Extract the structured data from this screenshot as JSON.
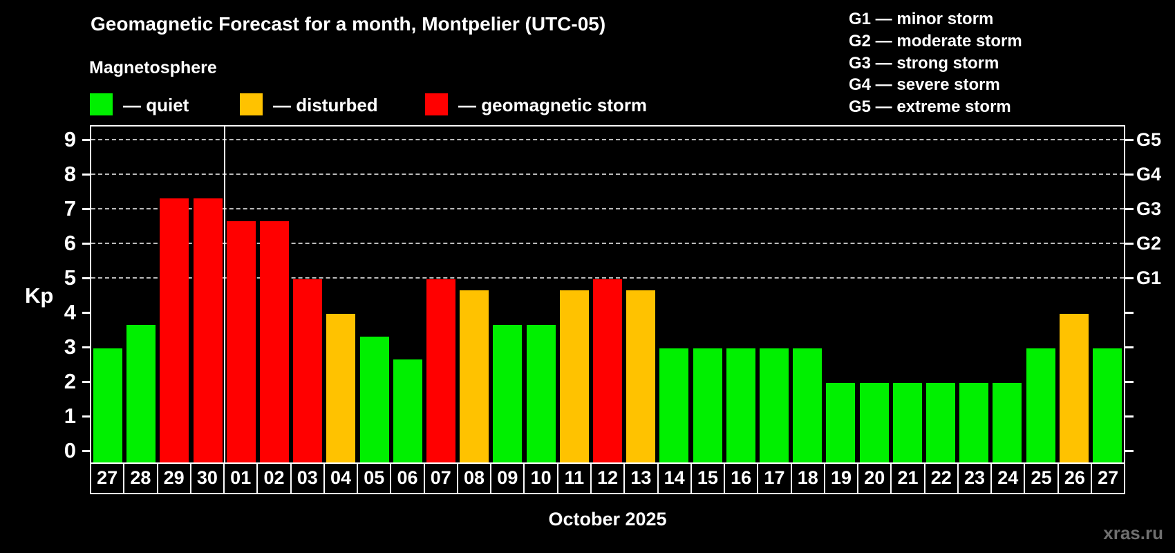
{
  "header": {
    "title": "Geomagnetic Forecast for a month, Montpelier (UTC-05)",
    "subtitle": "Magnetosphere",
    "legend": [
      {
        "key": "quiet",
        "label": "— quiet",
        "color": "#00f000"
      },
      {
        "key": "disturbed",
        "label": "— disturbed",
        "color": "#ffc200"
      },
      {
        "key": "storm",
        "label": "— geomagnetic storm",
        "color": "#ff0000"
      }
    ],
    "g_scale_legend": [
      "G1 — minor storm",
      "G2 — moderate storm",
      "G3 — strong storm",
      "G4 — severe storm",
      "G5 — extreme storm"
    ]
  },
  "chart_data": {
    "type": "bar",
    "title": "Geomagnetic Forecast for a month, Montpelier (UTC-05)",
    "ylabel": "Kp",
    "xlabel": "October 2025",
    "ylim": [
      0,
      9
    ],
    "yticks": [
      0,
      1,
      2,
      3,
      4,
      5,
      6,
      7,
      8,
      9
    ],
    "gridlines_at_kp": [
      5,
      6,
      7,
      8,
      9
    ],
    "right_axis": [
      {
        "kp": 5,
        "label": "G1"
      },
      {
        "kp": 6,
        "label": "G2"
      },
      {
        "kp": 7,
        "label": "G3"
      },
      {
        "kp": 8,
        "label": "G4"
      },
      {
        "kp": 9,
        "label": "G5"
      }
    ],
    "month_separator_after_index": 3,
    "categories": [
      "27",
      "28",
      "29",
      "30",
      "01",
      "02",
      "03",
      "04",
      "05",
      "06",
      "07",
      "08",
      "09",
      "10",
      "11",
      "12",
      "13",
      "14",
      "15",
      "16",
      "17",
      "18",
      "19",
      "20",
      "21",
      "22",
      "23",
      "24",
      "25",
      "26",
      "27"
    ],
    "values": [
      3,
      3.67,
      7.33,
      7.33,
      6.67,
      6.67,
      5,
      4,
      3.33,
      2.67,
      5,
      4.67,
      3.67,
      3.67,
      4.67,
      5,
      4.67,
      3,
      3,
      3,
      3,
      3,
      2,
      2,
      2,
      2,
      2,
      2,
      3,
      4,
      3
    ],
    "status": [
      "quiet",
      "quiet",
      "storm",
      "storm",
      "storm",
      "storm",
      "storm",
      "disturbed",
      "quiet",
      "quiet",
      "storm",
      "disturbed",
      "quiet",
      "quiet",
      "disturbed",
      "storm",
      "disturbed",
      "quiet",
      "quiet",
      "quiet",
      "quiet",
      "quiet",
      "quiet",
      "quiet",
      "quiet",
      "quiet",
      "quiet",
      "quiet",
      "quiet",
      "disturbed",
      "quiet"
    ],
    "colors": {
      "quiet": "#00f000",
      "disturbed": "#ffc200",
      "storm": "#ff0000"
    },
    "grid": true,
    "legend_position": "top-left"
  },
  "footer": {
    "caption": "October 2025",
    "watermark": "xras.ru"
  }
}
